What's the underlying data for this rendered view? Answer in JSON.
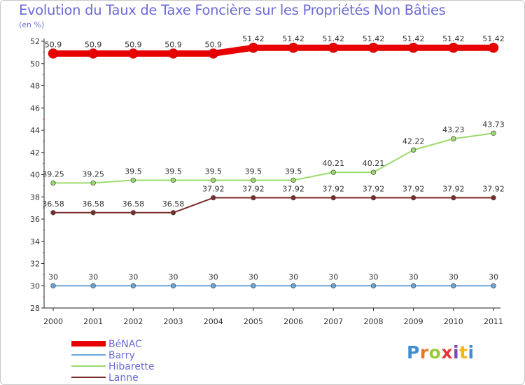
{
  "title": "Evolution du Taux de Taxe Foncière sur les Propriétés Non Bâties",
  "unit_label": "(en %)",
  "brand": {
    "logo_text": "Proxiti",
    "letter_colors": [
      "#3f8fd0",
      "#e7762b",
      "#9bc93c",
      "#e23a3a",
      "#7b4aa8",
      "#f4b617",
      "#3f8fd0"
    ]
  },
  "chart_data": {
    "type": "line",
    "title": "Evolution du Taux de Taxe Foncière sur les Propriétés Non Bâties",
    "ylabel": "(en %)",
    "xlabel": "",
    "categories": [
      "2000",
      "2001",
      "2002",
      "2003",
      "2004",
      "2005",
      "2006",
      "2007",
      "2008",
      "2009",
      "2010",
      "2011"
    ],
    "ylim": [
      28,
      52
    ],
    "yticks": [
      28,
      30,
      32,
      34,
      36,
      38,
      40,
      42,
      44,
      46,
      48,
      50,
      52
    ],
    "grid": false,
    "legend_position": "bottom-left",
    "series": [
      {
        "name": "BéNAC",
        "color": "#e80000",
        "emphasis": true,
        "values": [
          50.9,
          50.9,
          50.9,
          50.9,
          50.9,
          51.42,
          51.42,
          51.42,
          51.42,
          51.42,
          51.42,
          51.42
        ],
        "labels": [
          "50.9",
          "50.9",
          "50.9",
          "50.9",
          "50.9",
          "51.42",
          "51.42",
          "51.42",
          "51.42",
          "51.42",
          "51.42",
          "51.42"
        ]
      },
      {
        "name": "Barry",
        "color": "#6aa5d9",
        "values": [
          30,
          30,
          30,
          30,
          30,
          30,
          30,
          30,
          30,
          30,
          30,
          30
        ],
        "labels": [
          "30",
          "30",
          "30",
          "30",
          "30",
          "30",
          "30",
          "30",
          "30",
          "30",
          "30",
          "30"
        ]
      },
      {
        "name": "Hibarette",
        "color": "#9bdb6c",
        "values": [
          39.25,
          39.25,
          39.5,
          39.5,
          39.5,
          39.5,
          39.5,
          40.21,
          40.21,
          42.22,
          43.23,
          43.73
        ],
        "labels": [
          "39.25",
          "39.25",
          "39.5",
          "39.5",
          "39.5",
          "39.5",
          "39.5",
          "40.21",
          "40.21",
          "42.22",
          "43.23",
          "43.73"
        ]
      },
      {
        "name": "Lanne",
        "color": "#7a2a2a",
        "values": [
          36.58,
          36.58,
          36.58,
          36.58,
          37.92,
          37.92,
          37.92,
          37.92,
          37.92,
          37.92,
          37.92,
          37.92
        ],
        "labels": [
          "36.58",
          "36.58",
          "36.58",
          "36.58",
          "37.92",
          "37.92",
          "37.92",
          "37.92",
          "37.92",
          "37.92",
          "37.92",
          "37.92"
        ]
      }
    ]
  }
}
